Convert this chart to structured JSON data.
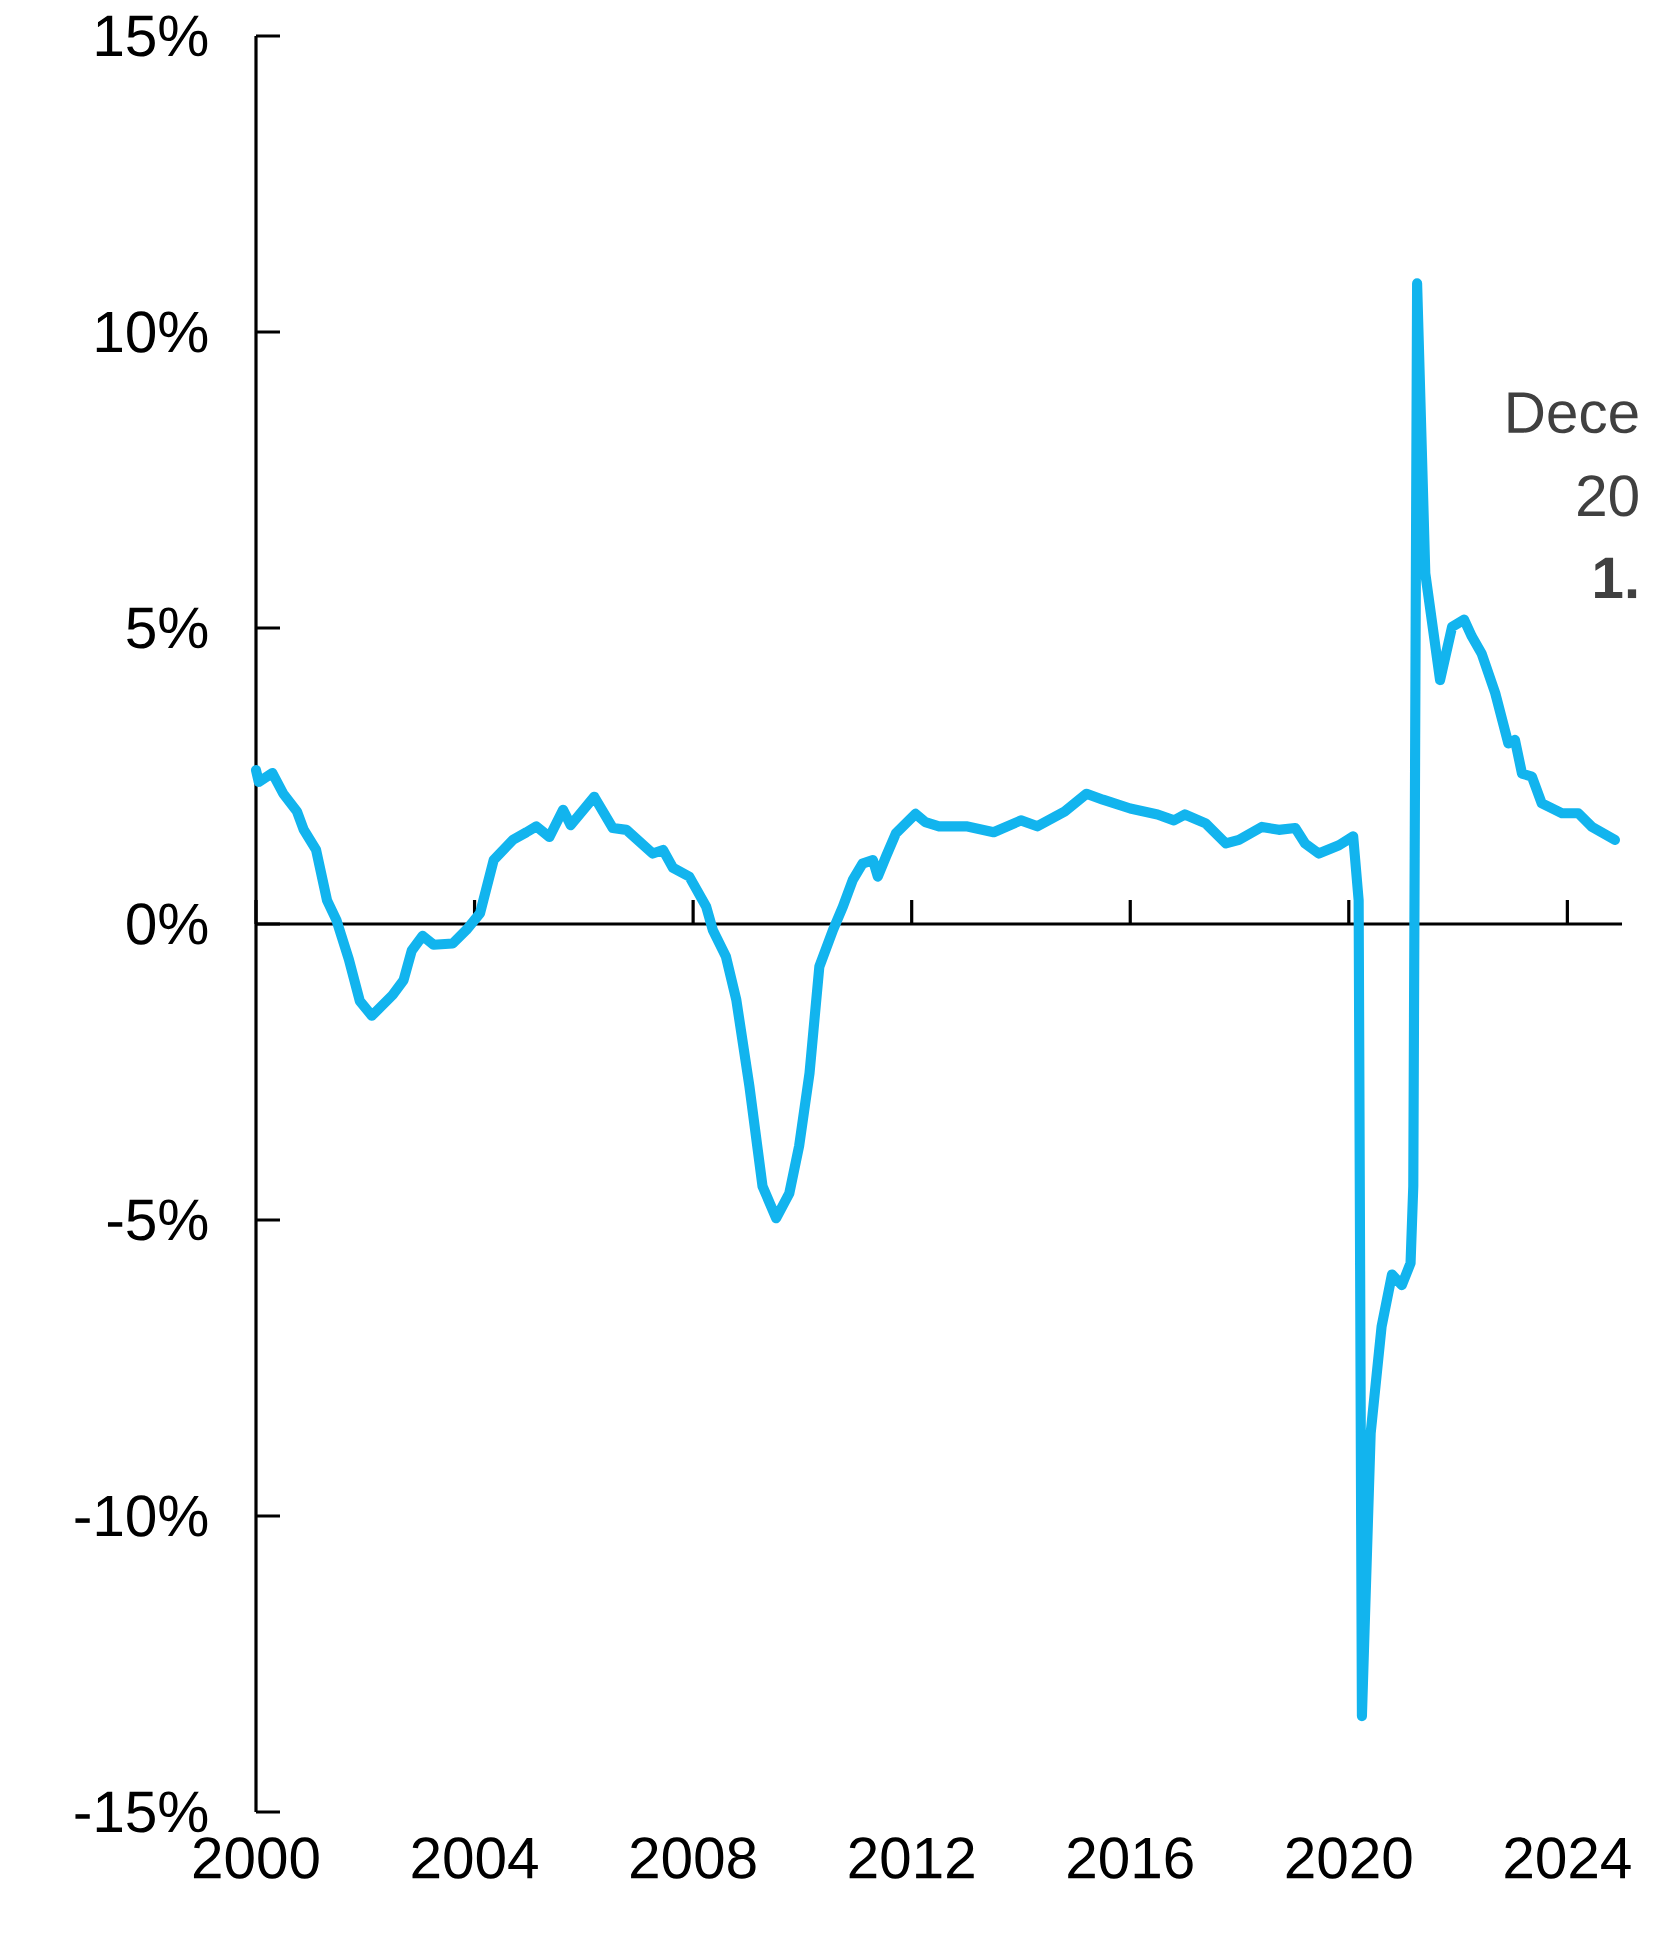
{
  "chart_data": {
    "type": "line",
    "x": [
      2000.0,
      2000.05,
      2000.3,
      2000.5,
      2000.75,
      2000.87,
      2001.1,
      2001.3,
      2001.47,
      2001.7,
      2001.9,
      2002.12,
      2002.5,
      2002.7,
      2002.85,
      2003.05,
      2003.25,
      2003.6,
      2003.85,
      2004.1,
      2004.35,
      2004.7,
      2004.95,
      2005.13,
      2005.37,
      2005.62,
      2005.76,
      2006.19,
      2006.53,
      2006.78,
      2007.26,
      2007.45,
      2007.63,
      2007.93,
      2008.24,
      2008.36,
      2008.6,
      2008.79,
      2009.03,
      2009.27,
      2009.52,
      2009.76,
      2009.94,
      2010.13,
      2010.31,
      2010.56,
      2010.74,
      2010.92,
      2011.1,
      2011.29,
      2011.38,
      2011.53,
      2011.71,
      2012.07,
      2012.25,
      2012.5,
      2013.0,
      2013.5,
      2014.0,
      2014.3,
      2014.8,
      2015.2,
      2015.5,
      2016.0,
      2016.5,
      2016.8,
      2017.0,
      2017.38,
      2017.75,
      2017.99,
      2018.41,
      2018.72,
      2019.02,
      2019.2,
      2019.45,
      2019.82,
      2020.08,
      2020.18,
      2020.24,
      2020.4,
      2020.6,
      2020.79,
      2020.97,
      2021.13,
      2021.18,
      2021.25,
      2021.4,
      2021.67,
      2021.89,
      2022.11,
      2022.25,
      2022.43,
      2022.68,
      2022.92,
      2023.04,
      2023.17,
      2023.35,
      2023.53,
      2023.9,
      2024.2,
      2024.45,
      2024.87
    ],
    "series": [
      {
        "color": "#12b4ee",
        "values": [
          2.6,
          2.4,
          2.55,
          2.2,
          1.9,
          1.6,
          1.25,
          0.4,
          0.07,
          -0.6,
          -1.3,
          -1.55,
          -1.2,
          -0.95,
          -0.45,
          -0.2,
          -0.35,
          -0.33,
          -0.1,
          0.18,
          1.08,
          1.42,
          1.55,
          1.65,
          1.47,
          1.93,
          1.67,
          2.15,
          1.62,
          1.59,
          1.19,
          1.25,
          0.95,
          0.8,
          0.29,
          -0.1,
          -0.55,
          -1.28,
          -2.74,
          -4.43,
          -4.97,
          -4.55,
          -3.75,
          -2.52,
          -0.72,
          -0.1,
          0.29,
          0.74,
          1.02,
          1.08,
          0.8,
          1.14,
          1.53,
          1.86,
          1.72,
          1.65,
          1.65,
          1.55,
          1.75,
          1.65,
          1.9,
          2.2,
          2.1,
          1.95,
          1.85,
          1.75,
          1.85,
          1.7,
          1.36,
          1.42,
          1.64,
          1.59,
          1.62,
          1.36,
          1.19,
          1.33,
          1.48,
          0.4,
          -13.38,
          -8.6,
          -6.8,
          -5.92,
          -6.1,
          -5.73,
          -4.43,
          10.82,
          5.92,
          4.12,
          5.02,
          5.14,
          4.86,
          4.57,
          3.9,
          3.05,
          3.11,
          2.54,
          2.49,
          2.04,
          1.87,
          1.87,
          1.64,
          1.42
        ]
      }
    ],
    "xlim": [
      2000,
      2025
    ],
    "xticks": [
      2000,
      2004,
      2008,
      2012,
      2016,
      2020,
      2024
    ],
    "ylim": [
      -15,
      15
    ],
    "yticks": [
      {
        "value": -15,
        "label": "-15%"
      },
      {
        "value": -10,
        "label": "-10%"
      },
      {
        "value": -5,
        "label": "-5%"
      },
      {
        "value": 0,
        "label": "0%"
      },
      {
        "value": 5,
        "label": "5%"
      },
      {
        "value": 10,
        "label": "10%"
      },
      {
        "value": 15,
        "label": "15%"
      }
    ],
    "annotations": [
      "Dece",
      "20",
      "**1.**"
    ],
    "marker": "none",
    "line_style": "solid"
  }
}
